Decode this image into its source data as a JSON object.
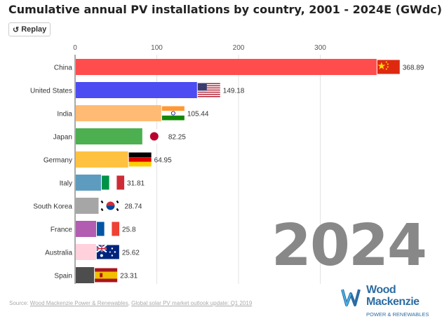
{
  "header": {
    "title": "Cumulative annual PV installations by country, 2001 - 2024E (GWdc)",
    "replay_label": "Replay"
  },
  "year_label": "2024",
  "source": {
    "prefix": "Source: ",
    "link1": "Wood Mackenzie Power & Renewables",
    "separator": ", ",
    "link2": "Global solar PV market outlook update: Q1 2019"
  },
  "logo": {
    "line1": "Wood",
    "line2": "Mackenzie",
    "line3": "POWER & RENEWABLES"
  },
  "chart_data": {
    "type": "bar",
    "orientation": "horizontal",
    "title": "Cumulative annual PV installations by country, 2001 - 2024E (GWdc)",
    "categories": [
      "China",
      "United States",
      "India",
      "Japan",
      "Germany",
      "Italy",
      "South Korea",
      "France",
      "Australia",
      "Spain"
    ],
    "values": [
      368.89,
      149.18,
      105.44,
      82.25,
      64.95,
      31.81,
      28.74,
      25.8,
      25.62,
      23.31
    ],
    "value_labels": [
      "368.89",
      "149.18",
      "105.44",
      "82.25",
      "64.95",
      "31.81",
      "28.74",
      "25.8",
      "25.62",
      "23.31"
    ],
    "colors": [
      "#ff4c4c",
      "#4c4cf2",
      "#ffbb73",
      "#4caf50",
      "#ffc240",
      "#5d9cbf",
      "#a6a6a6",
      "#b25cb2",
      "#ffd1dc",
      "#4d4d4d"
    ],
    "flags": [
      "china-flag",
      "us-flag",
      "india-flag",
      "japan-flag",
      "germany-flag",
      "italy-flag",
      "south-korea-flag",
      "france-flag",
      "australia-flag",
      "spain-flag"
    ],
    "xlim": [
      0,
      370
    ],
    "xticks": [
      0,
      100,
      200,
      300
    ],
    "tick_labels": [
      "0",
      "100",
      "200",
      "300"
    ],
    "xlabel": "",
    "ylabel": "",
    "grid": true
  }
}
